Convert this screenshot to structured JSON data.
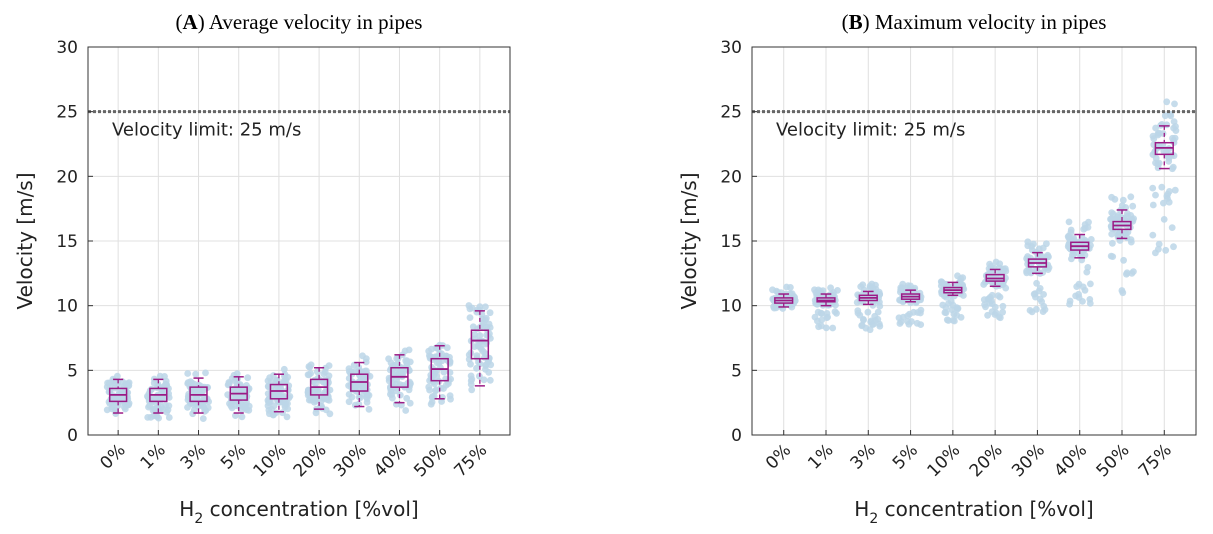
{
  "chart_data": [
    {
      "type": "box",
      "panel_letter": "A",
      "title": "Average velocity in pipes",
      "xlabel_main": "H",
      "xlabel_sub": "2",
      "xlabel_rest": " concentration [%vol]",
      "ylabel": "Velocity [m/s]",
      "ylim": [
        0,
        30
      ],
      "yticks": [
        0,
        5,
        10,
        15,
        20,
        25,
        30
      ],
      "ytick_labels": [
        "0",
        "5",
        "10",
        "15",
        "20",
        "25",
        "30"
      ],
      "grid": true,
      "categories": [
        "0%",
        "1%",
        "3%",
        "5%",
        "10%",
        "20%",
        "30%",
        "40%",
        "50%",
        "75%"
      ],
      "reference_line": {
        "y": 25,
        "label": "Velocity limit: 25 m/s"
      },
      "boxes": [
        {
          "min": 1.7,
          "q1": 2.6,
          "median": 3.1,
          "q3": 3.6,
          "max": 4.3
        },
        {
          "min": 1.7,
          "q1": 2.6,
          "median": 3.1,
          "q3": 3.6,
          "max": 4.3
        },
        {
          "min": 1.7,
          "q1": 2.6,
          "median": 3.1,
          "q3": 3.7,
          "max": 4.4
        },
        {
          "min": 1.7,
          "q1": 2.7,
          "median": 3.2,
          "q3": 3.7,
          "max": 4.5
        },
        {
          "min": 1.8,
          "q1": 2.8,
          "median": 3.4,
          "q3": 3.9,
          "max": 4.7
        },
        {
          "min": 2.0,
          "q1": 3.1,
          "median": 3.7,
          "q3": 4.3,
          "max": 5.2
        },
        {
          "min": 2.2,
          "q1": 3.4,
          "median": 4.1,
          "q3": 4.7,
          "max": 5.6
        },
        {
          "min": 2.5,
          "q1": 3.7,
          "median": 4.5,
          "q3": 5.2,
          "max": 6.2
        },
        {
          "min": 2.8,
          "q1": 4.2,
          "median": 5.1,
          "q3": 5.9,
          "max": 6.9
        },
        {
          "min": 3.8,
          "q1": 5.9,
          "median": 7.3,
          "q3": 8.1,
          "max": 9.6
        }
      ],
      "scatter_color": "#bcd6e8",
      "box_color": "#9b1b86"
    },
    {
      "type": "box",
      "panel_letter": "B",
      "title": "Maximum velocity in pipes",
      "xlabel_main": "H",
      "xlabel_sub": "2",
      "xlabel_rest": " concentration [%vol]",
      "ylabel": "Velocity [m/s]",
      "ylim": [
        0,
        30
      ],
      "yticks": [
        0,
        5,
        10,
        15,
        20,
        25,
        30
      ],
      "ytick_labels": [
        "0",
        "5",
        "10",
        "15",
        "20",
        "25",
        "30"
      ],
      "grid": true,
      "categories": [
        "0%",
        "1%",
        "3%",
        "5%",
        "10%",
        "20%",
        "30%",
        "40%",
        "50%",
        "75%"
      ],
      "reference_line": {
        "y": 25,
        "label": "Velocity limit: 25 m/s"
      },
      "boxes": [
        {
          "min": 9.9,
          "q1": 10.2,
          "median": 10.4,
          "q3": 10.6,
          "max": 10.9
        },
        {
          "min": 10.0,
          "q1": 10.3,
          "median": 10.4,
          "q3": 10.6,
          "max": 10.9
        },
        {
          "min": 10.1,
          "q1": 10.4,
          "median": 10.6,
          "q3": 10.8,
          "max": 11.1
        },
        {
          "min": 10.3,
          "q1": 10.5,
          "median": 10.7,
          "q3": 10.9,
          "max": 11.2
        },
        {
          "min": 10.8,
          "q1": 11.0,
          "median": 11.2,
          "q3": 11.4,
          "max": 11.8
        },
        {
          "min": 11.5,
          "q1": 11.9,
          "median": 12.1,
          "q3": 12.4,
          "max": 12.8
        },
        {
          "min": 12.5,
          "q1": 13.0,
          "median": 13.3,
          "q3": 13.6,
          "max": 14.1
        },
        {
          "min": 13.7,
          "q1": 14.3,
          "median": 14.6,
          "q3": 14.9,
          "max": 15.5
        },
        {
          "min": 15.2,
          "q1": 15.9,
          "median": 16.2,
          "q3": 16.5,
          "max": 17.4
        },
        {
          "min": 20.6,
          "q1": 21.7,
          "median": 22.2,
          "q3": 22.6,
          "max": 23.9
        }
      ],
      "scatter_color": "#bcd6e8",
      "box_color": "#9b1b86"
    }
  ]
}
